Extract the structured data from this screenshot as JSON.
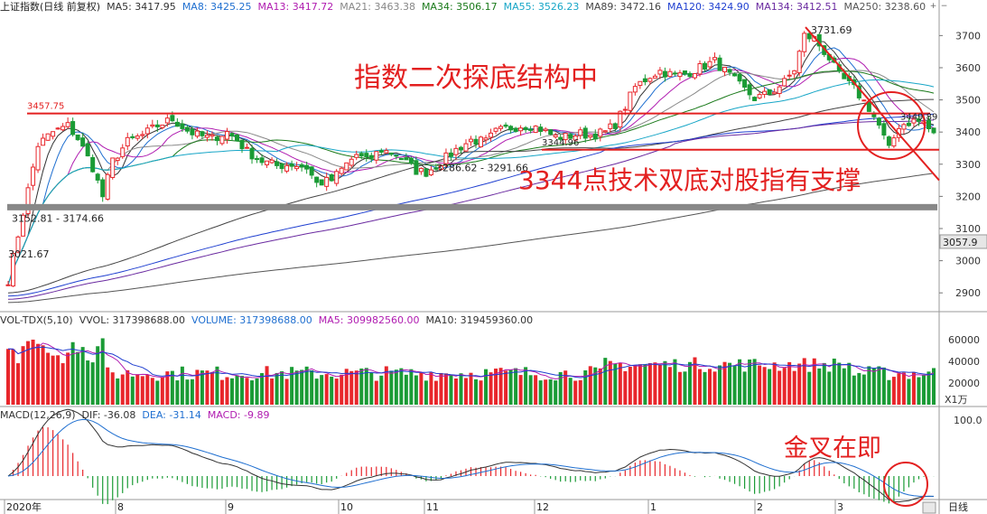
{
  "header": {
    "title": "上证指数(日线 前复权)",
    "ma": [
      {
        "label": "MA5: 3417.95",
        "color": "#333333"
      },
      {
        "label": "MA8: 3425.25",
        "color": "#1f6fd0"
      },
      {
        "label": "MA13: 3417.72",
        "color": "#b01cb0"
      },
      {
        "label": "MA21: 3463.38",
        "color": "#888888"
      },
      {
        "label": "MA34: 3506.17",
        "color": "#1a7a1a"
      },
      {
        "label": "MA55: 3526.23",
        "color": "#17a6c7"
      },
      {
        "label": "MA89: 3472.16",
        "color": "#444444"
      },
      {
        "label": "MA120: 3424.90",
        "color": "#1f3fd0"
      },
      {
        "label": "MA134: 3412.51",
        "color": "#6a2aa0"
      },
      {
        "label": "MA250: 3238.60",
        "color": "#555555"
      }
    ]
  },
  "colors": {
    "up": "#e8262b",
    "down": "#1a9b35",
    "annotation": "#e32020",
    "support": "#888888"
  },
  "price_axis": {
    "ticks": [
      "3700",
      "3600",
      "3500",
      "3400",
      "3300",
      "3200",
      "3100",
      "3000",
      "2900"
    ],
    "current": "3057.9"
  },
  "annotations": {
    "title": "指数二次探底结构中",
    "support": "3344点技术双底对股指有支撑",
    "golden_cross": "金叉在即",
    "price_labels": {
      "high_left": "3457.75",
      "high_right": "3731.69",
      "low_left": "3152.81 - 3174.66",
      "low_mid": "3286.62 - 3291.66",
      "start": "3021.67",
      "neck": "3344.96",
      "recent": "3449.89"
    }
  },
  "volume": {
    "legend": [
      {
        "label": "VOL-TDX(5,10)",
        "color": "#333333"
      },
      {
        "label": "VVOL: 317398688.00",
        "color": "#333333"
      },
      {
        "label": "VOLUME: 317398688.00",
        "color": "#1f6fd0"
      },
      {
        "label": "MA5: 309982560.00",
        "color": "#b01cb0"
      },
      {
        "label": "MA10: 319459360.00",
        "color": "#333333"
      }
    ],
    "ticks": [
      "60000",
      "40000",
      "20000"
    ],
    "unit": "X1万"
  },
  "macd": {
    "legend": [
      {
        "label": "MACD(12,26,9)",
        "color": "#333333"
      },
      {
        "label": "DIF: -36.08",
        "color": "#333333"
      },
      {
        "label": "DEA: -31.14",
        "color": "#1f6fd0"
      },
      {
        "label": "MACD: -9.89",
        "color": "#b01cb0"
      }
    ],
    "ticks": [
      "100.0"
    ]
  },
  "time_axis": {
    "labels": [
      "2020年",
      "8",
      "9",
      "10",
      "11",
      "12",
      "1",
      "2",
      "3"
    ],
    "period": "日线"
  },
  "chart_data": {
    "type": "candlestick",
    "title": "上证指数(日线 前复权)",
    "ylim": [
      2850,
      3760
    ],
    "months": [
      "2020年",
      "8",
      "9",
      "10",
      "11",
      "12",
      "1",
      "2",
      "3"
    ],
    "key_levels": {
      "high_left": 3457.75,
      "high_right": 3731.69,
      "low_left": [
        3152.81,
        3174.66
      ],
      "low_mid": [
        3286.62,
        3291.66
      ],
      "start": 3021.67,
      "neck": 3344.96,
      "recent": 3449.89,
      "last": 3057.9
    },
    "close_path": [
      [
        0,
        2940
      ],
      [
        3,
        3150
      ],
      [
        6,
        3360
      ],
      [
        9,
        3400
      ],
      [
        12,
        3420
      ],
      [
        14,
        3380
      ],
      [
        17,
        3290
      ],
      [
        19,
        3200
      ],
      [
        21,
        3310
      ],
      [
        24,
        3370
      ],
      [
        27,
        3390
      ],
      [
        30,
        3420
      ],
      [
        33,
        3440
      ],
      [
        36,
        3405
      ],
      [
        38,
        3390
      ],
      [
        41,
        3380
      ],
      [
        44,
        3400
      ],
      [
        46,
        3375
      ],
      [
        48,
        3340
      ],
      [
        51,
        3310
      ],
      [
        54,
        3295
      ],
      [
        57,
        3300
      ],
      [
        60,
        3290
      ],
      [
        62,
        3240
      ],
      [
        65,
        3250
      ],
      [
        68,
        3300
      ],
      [
        70,
        3330
      ],
      [
        72,
        3310
      ],
      [
        75,
        3345
      ],
      [
        78,
        3330
      ],
      [
        80,
        3305
      ],
      [
        82,
        3280
      ],
      [
        84,
        3275
      ],
      [
        86,
        3295
      ],
      [
        88,
        3320
      ],
      [
        90,
        3345
      ],
      [
        93,
        3375
      ],
      [
        96,
        3370
      ],
      [
        98,
        3400
      ],
      [
        100,
        3410
      ],
      [
        103,
        3420
      ],
      [
        105,
        3420
      ],
      [
        107,
        3410
      ],
      [
        110,
        3385
      ],
      [
        112,
        3385
      ],
      [
        115,
        3395
      ],
      [
        117,
        3390
      ],
      [
        120,
        3400
      ],
      [
        122,
        3425
      ],
      [
        124,
        3480
      ],
      [
        126,
        3540
      ],
      [
        129,
        3575
      ],
      [
        131,
        3590
      ],
      [
        134,
        3575
      ],
      [
        136,
        3580
      ],
      [
        139,
        3600
      ],
      [
        142,
        3620
      ],
      [
        144,
        3590
      ],
      [
        147,
        3545
      ],
      [
        150,
        3505
      ],
      [
        153,
        3520
      ],
      [
        156,
        3555
      ],
      [
        158,
        3595
      ],
      [
        160,
        3700
      ],
      [
        162,
        3690
      ],
      [
        165,
        3630
      ],
      [
        167,
        3575
      ],
      [
        170,
        3535
      ],
      [
        173,
        3475
      ],
      [
        175,
        3420
      ],
      [
        177,
        3345
      ],
      [
        179,
        3420
      ],
      [
        182,
        3435
      ],
      [
        184,
        3430
      ],
      [
        186,
        3390
      ]
    ],
    "volume_series": {
      "unit": "X1万",
      "ylim": [
        0,
        70000
      ]
    },
    "macd_series": {
      "dif_last": -36.08,
      "dea_last": -31.14,
      "macd_last": -9.89
    }
  }
}
